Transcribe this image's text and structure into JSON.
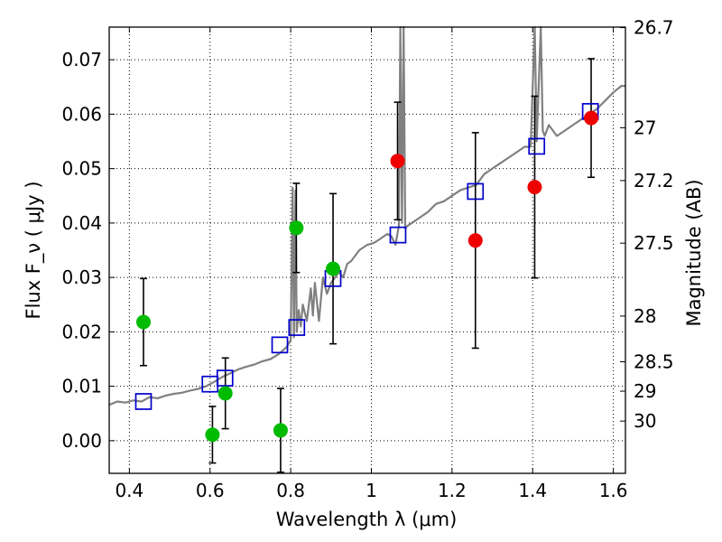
{
  "chart_data": {
    "type": "scatter",
    "title": "",
    "xlabel": "Wavelength  λ (μm)",
    "ylabel": "Flux  F_ν  ( μJy )",
    "ylabel_right": "Magnitude (AB)",
    "xlim": [
      0.35,
      1.63
    ],
    "ylim": [
      -0.006,
      0.076
    ],
    "grid": true,
    "x_ticks": [
      0.4,
      0.6,
      0.8,
      1.0,
      1.2,
      1.4,
      1.6
    ],
    "x_tick_labels": [
      "0.4",
      "0.6",
      "0.8",
      "1",
      "1.2",
      "1.4",
      "1.6"
    ],
    "y_ticks": [
      0.0,
      0.01,
      0.02,
      0.03,
      0.04,
      0.05,
      0.06,
      0.07
    ],
    "y_tick_labels": [
      "0.00",
      "0.01",
      "0.02",
      "0.03",
      "0.04",
      "0.05",
      "0.06",
      "0.07"
    ],
    "right_ticks": [
      {
        "label": "26.7",
        "flux": 0.0759
      },
      {
        "label": "27",
        "flux": 0.0575
      },
      {
        "label": "27.2",
        "flux": 0.0478
      },
      {
        "label": "27.5",
        "flux": 0.0363
      },
      {
        "label": "28",
        "flux": 0.0229
      },
      {
        "label": "28.5",
        "flux": 0.0145
      },
      {
        "label": "29",
        "flux": 0.0091
      },
      {
        "label": "30",
        "flux": 0.0036
      }
    ],
    "colors": {
      "model": "#808080",
      "model_points": "#0000cc",
      "green": "#00bb00",
      "red": "#ee0000",
      "errorbar": "#000000",
      "grid": "#000000"
    },
    "model_spectrum": [
      [
        0.35,
        0.0066
      ],
      [
        0.37,
        0.0072
      ],
      [
        0.39,
        0.007
      ],
      [
        0.41,
        0.0074
      ],
      [
        0.43,
        0.0072
      ],
      [
        0.45,
        0.008
      ],
      [
        0.47,
        0.0078
      ],
      [
        0.49,
        0.0083
      ],
      [
        0.51,
        0.0086
      ],
      [
        0.53,
        0.0088
      ],
      [
        0.55,
        0.0092
      ],
      [
        0.57,
        0.0095
      ],
      [
        0.59,
        0.01
      ],
      [
        0.61,
        0.0108
      ],
      [
        0.63,
        0.0117
      ],
      [
        0.65,
        0.0124
      ],
      [
        0.67,
        0.0131
      ],
      [
        0.69,
        0.0136
      ],
      [
        0.71,
        0.014
      ],
      [
        0.73,
        0.0146
      ],
      [
        0.75,
        0.015
      ],
      [
        0.77,
        0.0159
      ],
      [
        0.79,
        0.0172
      ],
      [
        0.8,
        0.0185
      ],
      [
        0.805,
        0.0465
      ],
      [
        0.808,
        0.019
      ],
      [
        0.812,
        0.046
      ],
      [
        0.815,
        0.02
      ],
      [
        0.82,
        0.024
      ],
      [
        0.825,
        0.021
      ],
      [
        0.83,
        0.025
      ],
      [
        0.84,
        0.022
      ],
      [
        0.85,
        0.028
      ],
      [
        0.855,
        0.023
      ],
      [
        0.86,
        0.029
      ],
      [
        0.87,
        0.022
      ],
      [
        0.88,
        0.03
      ],
      [
        0.89,
        0.027
      ],
      [
        0.9,
        0.029
      ],
      [
        0.91,
        0.03
      ],
      [
        0.92,
        0.031
      ],
      [
        0.93,
        0.03
      ],
      [
        0.94,
        0.0325
      ],
      [
        0.95,
        0.033
      ],
      [
        0.96,
        0.034
      ],
      [
        0.97,
        0.035
      ],
      [
        0.98,
        0.0355
      ],
      [
        0.99,
        0.036
      ],
      [
        1.0,
        0.0362
      ],
      [
        1.01,
        0.0365
      ],
      [
        1.02,
        0.037
      ],
      [
        1.03,
        0.0375
      ],
      [
        1.04,
        0.038
      ],
      [
        1.05,
        0.0375
      ],
      [
        1.06,
        0.036
      ],
      [
        1.068,
        0.0395
      ],
      [
        1.072,
        0.076
      ],
      [
        1.076,
        0.04
      ],
      [
        1.08,
        0.076
      ],
      [
        1.084,
        0.039
      ],
      [
        1.09,
        0.0395
      ],
      [
        1.1,
        0.04
      ],
      [
        1.12,
        0.041
      ],
      [
        1.14,
        0.042
      ],
      [
        1.16,
        0.0435
      ],
      [
        1.18,
        0.044
      ],
      [
        1.2,
        0.045
      ],
      [
        1.22,
        0.046
      ],
      [
        1.24,
        0.0465
      ],
      [
        1.26,
        0.047
      ],
      [
        1.28,
        0.049
      ],
      [
        1.3,
        0.05
      ],
      [
        1.32,
        0.051
      ],
      [
        1.34,
        0.052
      ],
      [
        1.36,
        0.053
      ],
      [
        1.38,
        0.054
      ],
      [
        1.395,
        0.054
      ],
      [
        1.405,
        0.076
      ],
      [
        1.41,
        0.055
      ],
      [
        1.42,
        0.076
      ],
      [
        1.425,
        0.057
      ],
      [
        1.43,
        0.056
      ],
      [
        1.44,
        0.058
      ],
      [
        1.46,
        0.056
      ],
      [
        1.48,
        0.057
      ],
      [
        1.5,
        0.058
      ],
      [
        1.52,
        0.059
      ],
      [
        1.54,
        0.06
      ],
      [
        1.56,
        0.061
      ],
      [
        1.58,
        0.0625
      ],
      [
        1.6,
        0.064
      ],
      [
        1.62,
        0.0652
      ],
      [
        1.63,
        0.0652
      ]
    ],
    "model_points": [
      {
        "x": 0.435,
        "y": 0.0072
      },
      {
        "x": 0.6,
        "y": 0.0104
      },
      {
        "x": 0.637,
        "y": 0.0115
      },
      {
        "x": 0.773,
        "y": 0.0176
      },
      {
        "x": 0.815,
        "y": 0.0208
      },
      {
        "x": 0.905,
        "y": 0.0298
      },
      {
        "x": 1.066,
        "y": 0.0378
      },
      {
        "x": 1.258,
        "y": 0.0458
      },
      {
        "x": 1.41,
        "y": 0.0541
      },
      {
        "x": 1.543,
        "y": 0.0605
      }
    ],
    "observed_green": [
      {
        "x": 0.435,
        "y": 0.0218,
        "err": 0.008
      },
      {
        "x": 0.606,
        "y": 0.0011,
        "err": 0.0052
      },
      {
        "x": 0.638,
        "y": 0.0087,
        "err": 0.0065
      },
      {
        "x": 0.775,
        "y": 0.0019,
        "err": 0.0077
      },
      {
        "x": 0.814,
        "y": 0.0391,
        "err": 0.0082
      },
      {
        "x": 0.905,
        "y": 0.0316,
        "err": 0.0138
      }
    ],
    "observed_red": [
      {
        "x": 1.065,
        "y": 0.0514,
        "err": 0.0108
      },
      {
        "x": 1.258,
        "y": 0.0368,
        "err": 0.0198
      },
      {
        "x": 1.405,
        "y": 0.0466,
        "err": 0.0167
      },
      {
        "x": 1.545,
        "y": 0.0593,
        "err": 0.0109
      }
    ]
  }
}
